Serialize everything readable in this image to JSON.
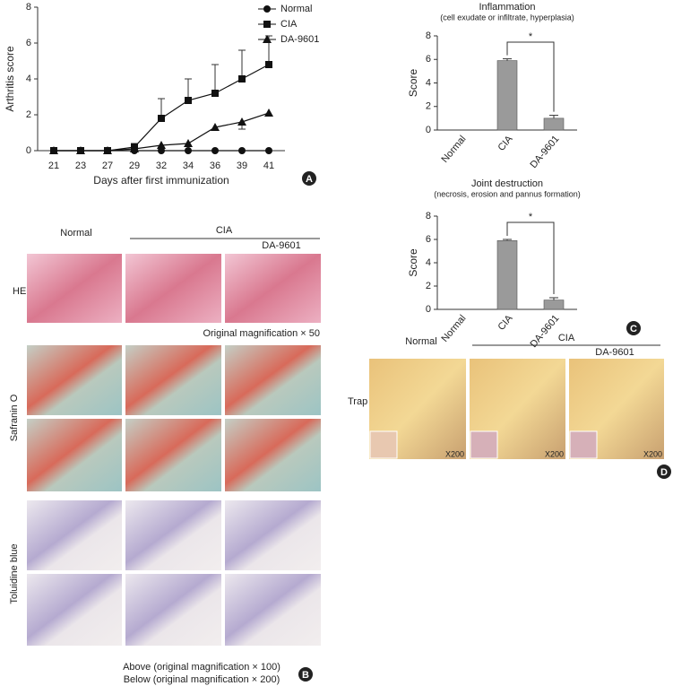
{
  "chart_data": [
    {
      "type": "line",
      "panel_label": "A",
      "xlabel": "Days after first immunization",
      "ylabel": "Arthritis score",
      "categories": [
        "21",
        "23",
        "27",
        "29",
        "32",
        "34",
        "36",
        "39",
        "41"
      ],
      "ylim": [
        0,
        8
      ],
      "yticks": [
        0,
        2,
        4,
        6,
        8
      ],
      "legend": "top-right",
      "series": [
        {
          "name": "Normal",
          "marker": "circle",
          "color": "#111111",
          "values": [
            0,
            0,
            0,
            0,
            0,
            0,
            0,
            0,
            0
          ]
        },
        {
          "name": "CIA",
          "marker": "square",
          "color": "#111111",
          "values": [
            0,
            0,
            0,
            0.2,
            1.8,
            2.8,
            3.2,
            4.0,
            4.8
          ],
          "errors": [
            0,
            0,
            0,
            0.2,
            1.1,
            1.2,
            1.6,
            1.6,
            1.6
          ]
        },
        {
          "name": "DA-9601",
          "marker": "triangle",
          "color": "#111111",
          "values": [
            0,
            0,
            0,
            0.1,
            0.3,
            0.4,
            1.3,
            1.6,
            2.1
          ],
          "errors": [
            0,
            0,
            0,
            0,
            0,
            0,
            0,
            0.4,
            0
          ]
        }
      ]
    },
    {
      "type": "bar",
      "title": "Inflammation",
      "subtitle": "(cell exudate or infiltrate, hyperplasia)",
      "ylabel": "Score",
      "categories": [
        "Normal",
        "CIA",
        "DA-9601"
      ],
      "values": [
        0,
        5.9,
        1.0
      ],
      "errors": [
        0,
        0.15,
        0.25
      ],
      "color": "#9a9a9a",
      "ylim": [
        0,
        8
      ],
      "yticks": [
        0,
        2,
        4,
        6,
        8
      ],
      "annotation": "*"
    },
    {
      "type": "bar",
      "title": "Joint destruction",
      "subtitle": "(necrosis, erosion and pannus formation)",
      "ylabel": "Score",
      "panel_label": "C",
      "categories": [
        "Normal",
        "CIA",
        "DA-9601"
      ],
      "values": [
        0,
        5.9,
        0.8
      ],
      "errors": [
        0,
        0.1,
        0.2
      ],
      "color": "#9a9a9a",
      "ylim": [
        0,
        8
      ],
      "yticks": [
        0,
        2,
        4,
        6,
        8
      ],
      "annotation": "*"
    }
  ],
  "panel_b": {
    "col_normal": "Normal",
    "col_cia": "CIA",
    "col_da": "DA-9601",
    "row_he": "HE",
    "he_note": "Original magnification × 50",
    "row_safranin": "Safranin O",
    "row_toluidine": "Toluidine blue",
    "note_above": "Above (original magnification × 100)",
    "note_below": "Below (original magnification × 200)",
    "label": "B"
  },
  "panel_d": {
    "col_normal": "Normal",
    "col_cia": "CIA",
    "col_da": "DA-9601",
    "row": "Trap",
    "mag": [
      "X200",
      "X200",
      "X200"
    ],
    "label": "D"
  }
}
